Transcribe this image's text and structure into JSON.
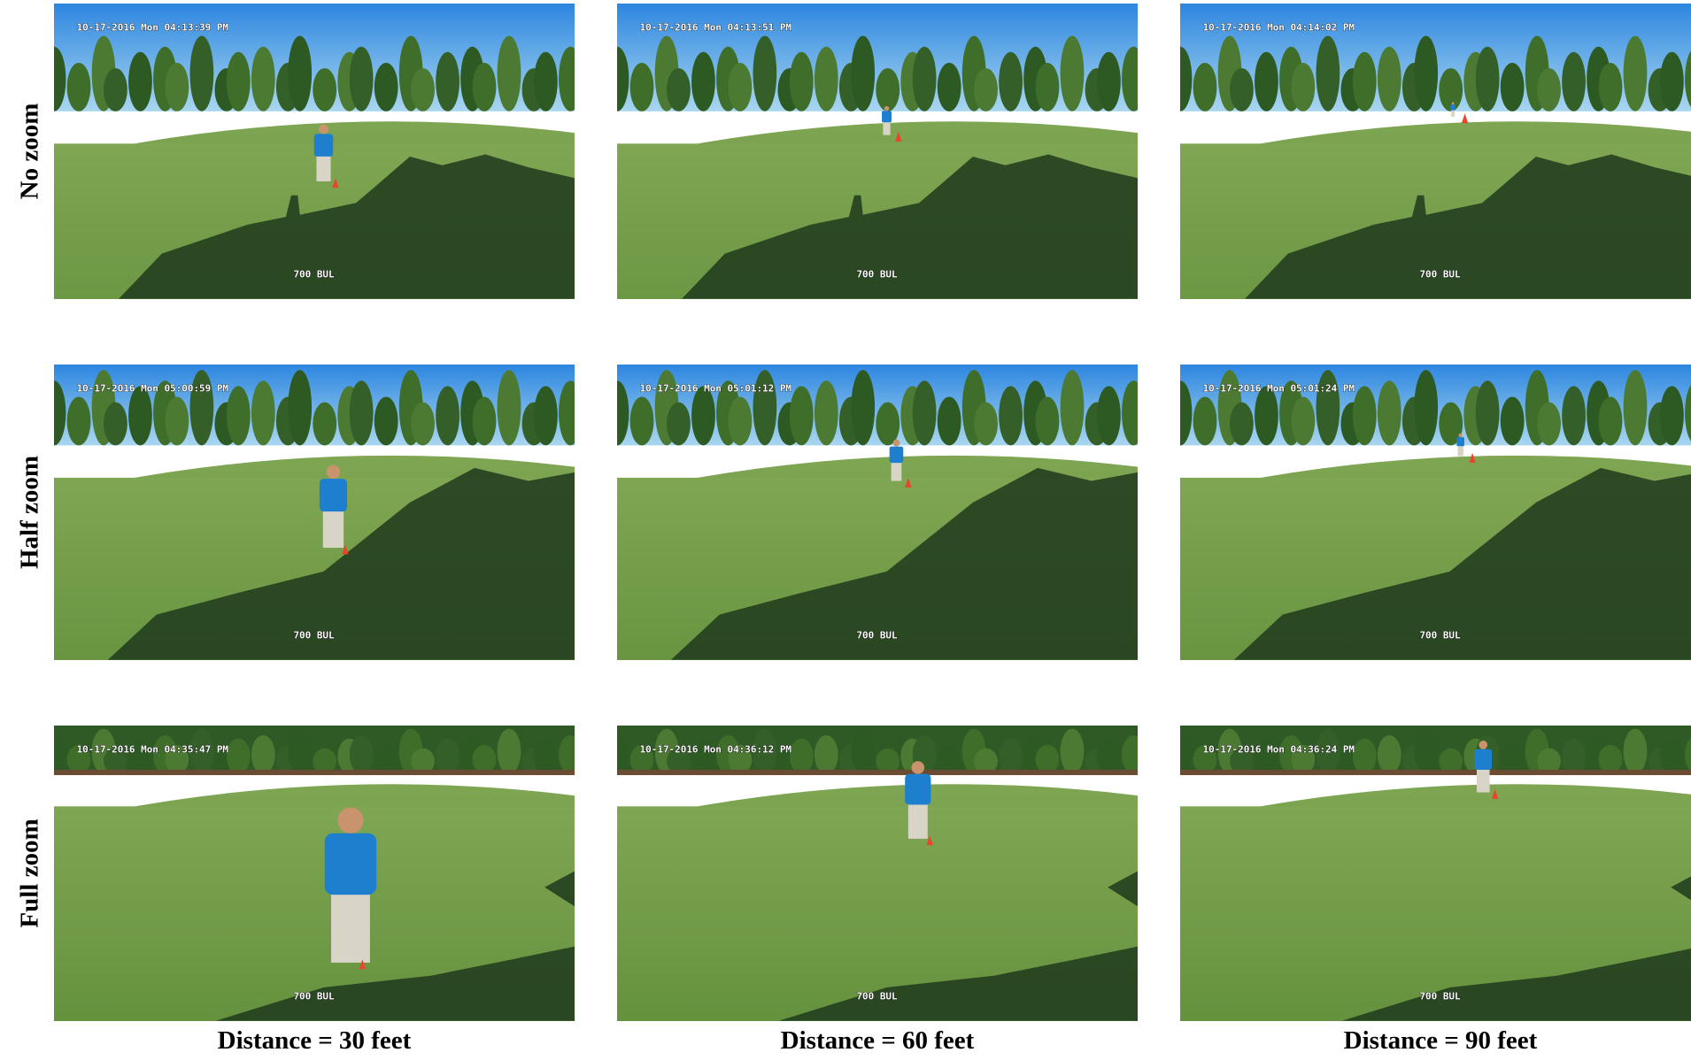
{
  "row_labels": [
    "No zoom",
    "Half zoom",
    "Full zoom"
  ],
  "column_labels": [
    "Distance = 30 feet",
    "Distance = 60 feet",
    "Distance = 90 feet"
  ],
  "panels": [
    [
      {
        "timestamp": "10-17-2016 Mon 04:13:39 PM",
        "caption": "700 BUL"
      },
      {
        "timestamp": "10-17-2016 Mon 04:13:51 PM",
        "caption": "700 BUL"
      },
      {
        "timestamp": "10-17-2016 Mon 04:14:02 PM",
        "caption": "700 BUL"
      }
    ],
    [
      {
        "timestamp": "10-17-2016 Mon 05:00:59 PM",
        "caption": "700 BUL"
      },
      {
        "timestamp": "10-17-2016 Mon 05:01:12 PM",
        "caption": "700 BUL"
      },
      {
        "timestamp": "10-17-2016 Mon 05:01:24 PM",
        "caption": "700 BUL"
      }
    ],
    [
      {
        "timestamp": "10-17-2016 Mon 04:35:47 PM",
        "caption": "700 BUL"
      },
      {
        "timestamp": "10-17-2016 Mon 04:36:12 PM",
        "caption": "700 BUL"
      },
      {
        "timestamp": "10-17-2016 Mon 04:36:24 PM",
        "caption": "700 BUL"
      }
    ]
  ]
}
